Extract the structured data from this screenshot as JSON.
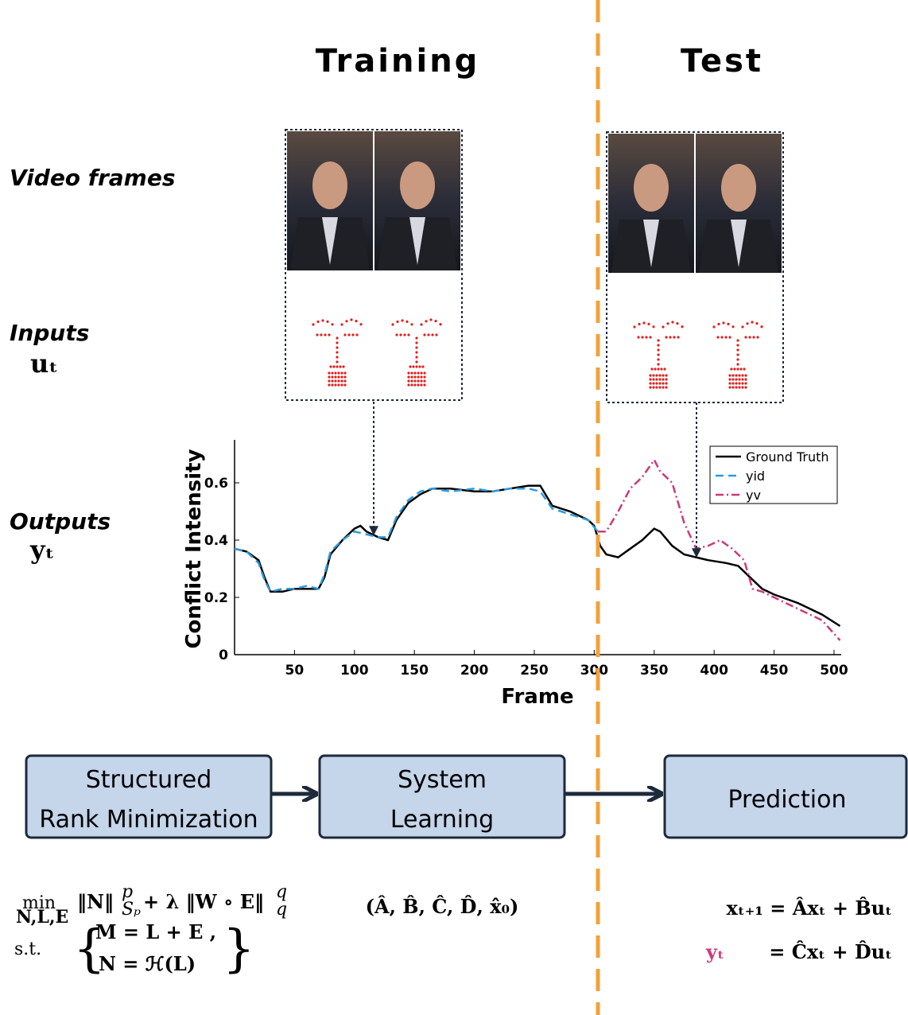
{
  "headers": {
    "training": "Training",
    "test": "Test"
  },
  "row_labels": {
    "video_frames": "Video frames",
    "inputs": "Inputs",
    "inputs_symbol": "uₜ",
    "outputs": "Outputs",
    "outputs_symbol": "yₜ"
  },
  "chart_data": {
    "type": "line",
    "x_label": "Frame",
    "y_label": "Conflict Intensity",
    "xlim": [
      0,
      506
    ],
    "ylim": [
      0,
      0.75
    ],
    "xticks": [
      50,
      100,
      150,
      200,
      250,
      300,
      350,
      400,
      450,
      500
    ],
    "yticks": [
      0,
      0.2,
      0.4,
      0.6
    ],
    "legend": "upper right",
    "series": [
      {
        "name": "Ground Truth",
        "color": "#000000",
        "dash": "solid",
        "x": [
          0,
          10,
          20,
          25,
          30,
          40,
          50,
          60,
          70,
          75,
          80,
          90,
          100,
          105,
          110,
          120,
          128,
          135,
          145,
          155,
          165,
          180,
          200,
          215,
          230,
          245,
          255,
          265,
          280,
          295,
          300,
          305,
          310,
          320,
          330,
          340,
          350,
          355,
          365,
          375,
          385,
          395,
          410,
          420,
          430,
          440,
          450,
          470,
          490,
          505
        ],
        "values": [
          0.37,
          0.36,
          0.33,
          0.27,
          0.22,
          0.22,
          0.23,
          0.23,
          0.23,
          0.27,
          0.35,
          0.4,
          0.44,
          0.45,
          0.43,
          0.41,
          0.4,
          0.47,
          0.53,
          0.56,
          0.58,
          0.58,
          0.57,
          0.57,
          0.58,
          0.59,
          0.59,
          0.52,
          0.5,
          0.47,
          0.45,
          0.38,
          0.35,
          0.34,
          0.37,
          0.4,
          0.44,
          0.43,
          0.38,
          0.35,
          0.34,
          0.33,
          0.32,
          0.31,
          0.27,
          0.23,
          0.21,
          0.18,
          0.14,
          0.1
        ]
      },
      {
        "name": "yid",
        "color": "#2a9be0",
        "dash": "dashed",
        "x": [
          0,
          10,
          20,
          25,
          30,
          40,
          50,
          60,
          70,
          75,
          80,
          90,
          100,
          110,
          120,
          128,
          135,
          145,
          155,
          165,
          180,
          200,
          215,
          230,
          245,
          255,
          265,
          280,
          295,
          303
        ],
        "values": [
          0.37,
          0.36,
          0.32,
          0.26,
          0.22,
          0.23,
          0.23,
          0.24,
          0.23,
          0.28,
          0.36,
          0.4,
          0.43,
          0.42,
          0.41,
          0.41,
          0.48,
          0.54,
          0.57,
          0.58,
          0.57,
          0.58,
          0.57,
          0.58,
          0.58,
          0.57,
          0.51,
          0.49,
          0.47,
          0.43
        ]
      },
      {
        "name": "yv",
        "color": "#cc3a7a",
        "dash": "dashdot",
        "x": [
          303,
          310,
          320,
          330,
          340,
          350,
          355,
          365,
          375,
          385,
          395,
          405,
          415,
          425,
          432,
          440,
          450,
          470,
          490,
          505
        ],
        "values": [
          0.43,
          0.43,
          0.5,
          0.58,
          0.62,
          0.68,
          0.64,
          0.6,
          0.46,
          0.37,
          0.38,
          0.4,
          0.37,
          0.33,
          0.23,
          0.22,
          0.2,
          0.16,
          0.12,
          0.05
        ]
      }
    ]
  },
  "blocks": [
    {
      "lines": [
        "Structured",
        "Rank Minimization"
      ]
    },
    {
      "lines": [
        "System",
        "Learning"
      ]
    },
    {
      "lines": [
        "Prediction"
      ]
    }
  ],
  "equations": {
    "min": "min",
    "min_sub": "N,L,E",
    "norm_n": "‖N‖",
    "p_sup": "p",
    "sp_sub": "Sₚ",
    "plus_term": "+ λ ‖W ∘ E‖",
    "q_sup": "q",
    "q_sub": "q",
    "st": "s.t.",
    "constraint_1": "M = L + E ,",
    "constraint_2": "N = ℋ(L)",
    "system_params": "(Â, B̂, Ĉ, D̂, x̂₀)",
    "state_eq": "xₜ₊₁ = Âxₜ + B̂uₜ",
    "output_lhs": "yₜ",
    "output_rhs": "= Ĉxₜ + D̂uₜ"
  }
}
